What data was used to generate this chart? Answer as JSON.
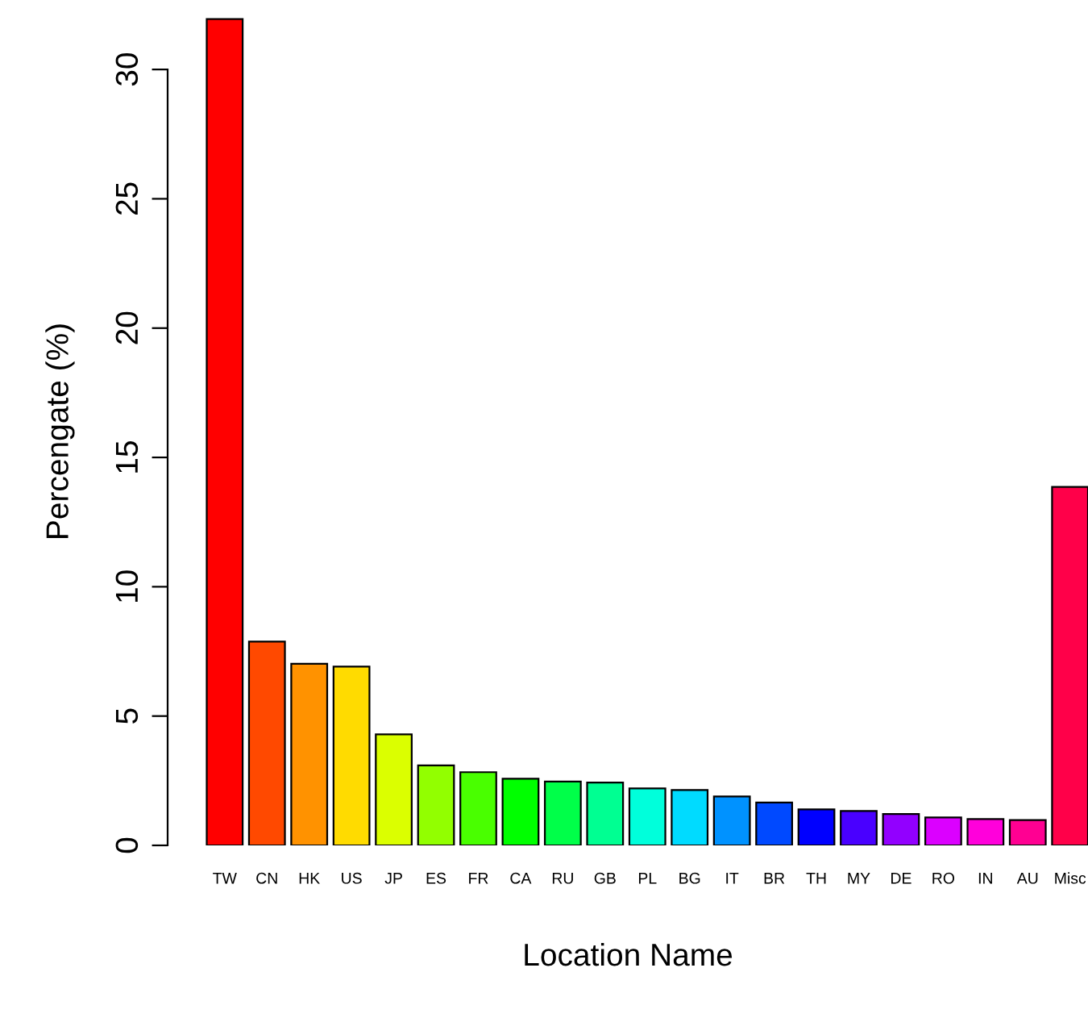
{
  "chart_data": {
    "type": "bar",
    "xlabel": "Location Name",
    "ylabel": "Percengate (%)",
    "categories": [
      "TW",
      "CN",
      "HK",
      "US",
      "JP",
      "ES",
      "FR",
      "CA",
      "RU",
      "GB",
      "PL",
      "BG",
      "IT",
      "BR",
      "TH",
      "MY",
      "DE",
      "RO",
      "IN",
      "AU",
      "Misc"
    ],
    "values": [
      31.95,
      7.88,
      7.02,
      6.91,
      4.29,
      3.09,
      2.83,
      2.58,
      2.47,
      2.43,
      2.2,
      2.14,
      1.89,
      1.66,
      1.39,
      1.33,
      1.21,
      1.08,
      1.02,
      0.98,
      13.86
    ],
    "colors": [
      "#ff0000",
      "#ff4900",
      "#ff9200",
      "#ffdb00",
      "#dbff00",
      "#92ff00",
      "#49ff00",
      "#00ff00",
      "#00ff49",
      "#00ff92",
      "#00ffdb",
      "#00dbff",
      "#0092ff",
      "#0049ff",
      "#0000ff",
      "#4900ff",
      "#9200ff",
      "#db00ff",
      "#ff00db",
      "#ff0092",
      "#ff0049"
    ],
    "ylim": [
      0,
      32
    ],
    "yticks": [
      0,
      5,
      10,
      15,
      20,
      25,
      30
    ],
    "grid": false,
    "legend": false
  }
}
